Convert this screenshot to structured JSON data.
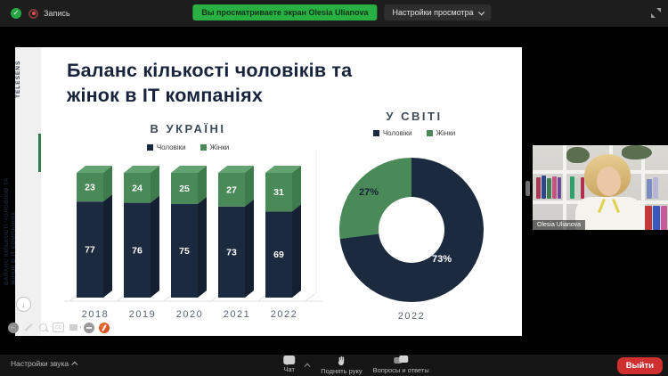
{
  "app": {
    "top_bar": {
      "record_label": "Запись",
      "banner_text": "Вы просматриваете экран Olesia Ulianova",
      "view_settings_label": "Настройки просмотра"
    },
    "bottom_bar": {
      "audio_settings_label": "Настройки звука",
      "chat_label": "Чат",
      "raise_hand_label": "Поднять руку",
      "qa_label": "Вопросы и ответы",
      "leave_label": "Выйти"
    },
    "video_panel": {
      "participant_name": "Olesia Ulianova"
    },
    "icons": {
      "check": "✓",
      "back_arrow": "←",
      "down_arrow": "↓"
    },
    "annotation": {
      "cc_label": "CC"
    },
    "colors": {
      "banner_green": "#28b043",
      "leave_red": "#d02f2f",
      "navy": "#1c2a40",
      "green": "#4a8a58"
    }
  },
  "slide": {
    "vertical_brand": "TELESENS",
    "vertical_title_line1": "БАЛАНС КІЛЬКОСТІ ЧОЛОВІКІВ ТА",
    "vertical_title_line2": "ЖІНОК В ІТ КОМПАНІЯХ",
    "title_line1": "Баланс кількості чоловіків та",
    "title_line2": "жінок в ІТ компаніях"
  },
  "chart_data": [
    {
      "type": "bar",
      "stacked": true,
      "title": "В УКРАЇНІ",
      "categories": [
        "2018",
        "2019",
        "2020",
        "2021",
        "2022"
      ],
      "series": [
        {
          "name": "Чоловіки",
          "color": "#1c2a40",
          "values": [
            77,
            76,
            75,
            73,
            69
          ]
        },
        {
          "name": "Жінки",
          "color": "#4a8a58",
          "values": [
            23,
            24,
            25,
            27,
            31
          ]
        }
      ],
      "ylim": [
        0,
        100
      ],
      "grid": false,
      "legend_position": "top",
      "style": "3d-column"
    },
    {
      "type": "pie",
      "donut": true,
      "title": "У СВІТІ",
      "categories": [
        "Чоловіки",
        "Жінки"
      ],
      "values": [
        73,
        27
      ],
      "labels": [
        "73%",
        "27%"
      ],
      "colors": [
        "#1c2a40",
        "#4a8a58"
      ],
      "footer": "2022",
      "legend_position": "top"
    }
  ]
}
